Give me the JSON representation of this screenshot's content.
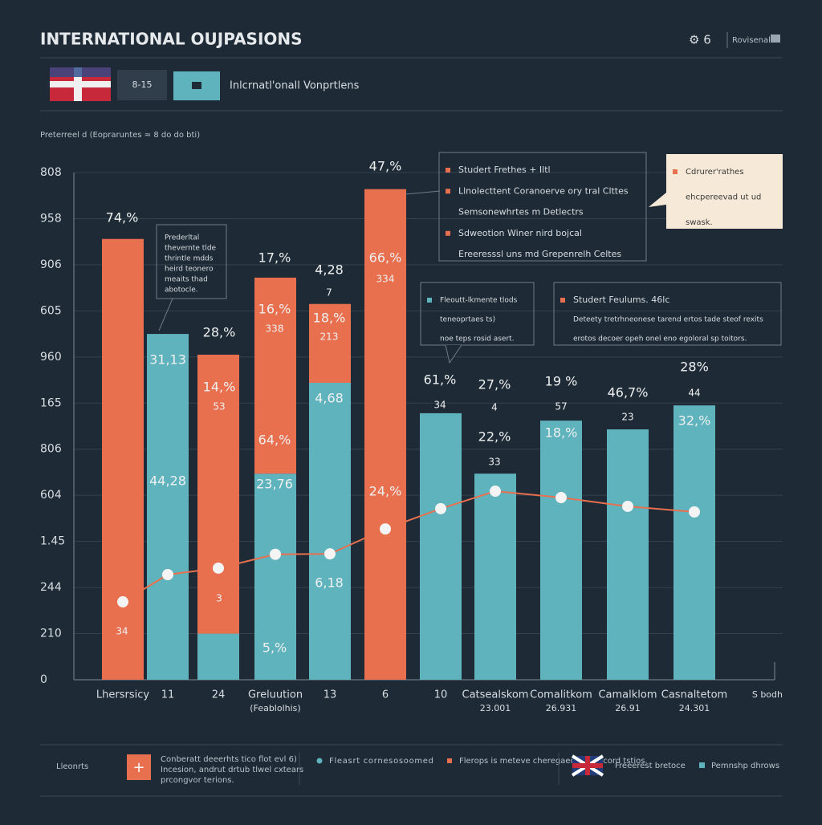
{
  "chart_data": {
    "type": "bar",
    "title": "INTERNATIONAL OUJPASIONS",
    "top_right": "Rovisenal",
    "badge": "8-15",
    "subtitle": "Inlcrnatl'onall Vonprtlens",
    "y_caption": "Preterreel d (Eopraruntes  ≈ 8 do do bti)",
    "categories": [
      "Lhersrsicy",
      "11",
      "24",
      "Greluution",
      "13",
      "6",
      "10",
      "Catsealskom",
      "Comalitkom",
      "Camalklom",
      "Casnaltetom"
    ],
    "category_sublabels": [
      null,
      null,
      null,
      "(Feablolhis)",
      null,
      null,
      null,
      "23.001",
      "26.931",
      "26.91",
      "24.301"
    ],
    "x_end_label": "S bodh",
    "ylim": [
      0,
      11
    ],
    "yticks": [
      0,
      {
        "value": 1,
        "label": "210"
      },
      {
        "value": 2,
        "label": "244"
      },
      {
        "value": 3,
        "label": "1.45"
      },
      {
        "value": 4,
        "label": "604"
      },
      {
        "value": 5,
        "label": "806"
      },
      {
        "value": 6,
        "label": "165"
      },
      {
        "value": 7,
        "label": "960"
      },
      {
        "value": 8,
        "label": "605"
      },
      {
        "value": 9,
        "label": "906"
      },
      {
        "value": 10,
        "label": "958"
      },
      {
        "value": 11,
        "label": "808"
      }
    ],
    "grid": true,
    "stacked": true,
    "series": [
      {
        "name": "Fleasrt cornesosoomed",
        "color": "#5fb3bd",
        "values": [
          0,
          7.5,
          1.0,
          4.47,
          6.44,
          0,
          5.78,
          4.47,
          5.62,
          5.43,
          5.95
        ]
      },
      {
        "name": "Flerops is meteve cheregaed tag accord tstios.",
        "color": "#e8704f",
        "values": [
          9.56,
          0,
          6.05,
          4.25,
          1.71,
          10.64,
          0,
          0,
          0,
          0,
          0
        ]
      },
      {
        "type": "line",
        "color": "#e8704f",
        "values": [
          1.69,
          2.28,
          2.42,
          2.72,
          2.73,
          3.27,
          3.71,
          4.09,
          3.95,
          3.76,
          3.64
        ]
      }
    ],
    "annotations": [
      "74,%",
      "28,%",
      "17,%",
      "4,28",
      "7",
      "47,%",
      "66,%",
      "334",
      "16,%",
      "338",
      "18,%",
      "213",
      "14,%",
      "53",
      "31,13",
      "44,28",
      "4,68",
      "64,%",
      "23,76",
      "6,18",
      "3",
      "34",
      "5,%",
      "61,%",
      "34",
      "27,%",
      "4",
      "22,%",
      "33",
      "19 %",
      "57",
      "18,%",
      "46,7%",
      "23",
      "28%",
      "44",
      "32,%",
      "24,%"
    ],
    "callouts": [
      [
        "Studert Frethes + Iltl",
        "Llnolecttent Coranoerve ory tral Clttes",
        "Semsonewhrtes m Detlectrs",
        "Sdweotion Winer nird bojcal",
        "Ereeresssl uns md Grepenrelh Celtes"
      ],
      [
        "Cdrurer'rathes",
        "ehcpereevad ut ud",
        "swask."
      ],
      [
        "Prederltal",
        "thevernte tlde",
        "thrintle mdds",
        "heird teonero",
        "meaits thad",
        "abotocle."
      ],
      [
        "Fleoutt-lkmente tlods",
        "teneoprtaes ts)",
        "noe teps rosid asert."
      ],
      [
        "Studert Feulums. 46lc",
        "Deteety tretrhneonese tarend ertos tade steof rexits",
        "erotos decoer opeh onel eno egoloral sp toitors."
      ]
    ],
    "footer": {
      "label": "Lleonrts",
      "note": [
        "Conberatt deeerhts tico flot evl 6)",
        "Incesion, andrut drtub tlwel cxtears",
        "prcongvor terions."
      ],
      "extra_1": "Freeerest bretoce",
      "extra_2": "Pemnshp dhrows"
    }
  }
}
